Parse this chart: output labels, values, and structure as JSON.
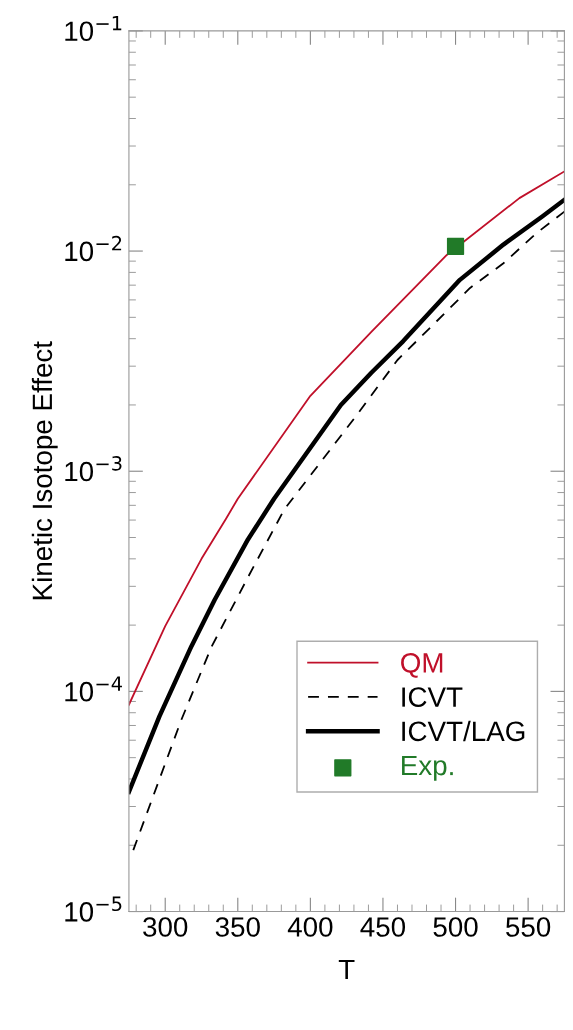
{
  "chart_data": {
    "type": "line",
    "xlabel": "T",
    "ylabel": "Kinetic Isotope Effect",
    "log": "y",
    "grid": false,
    "legend": "bottom right",
    "xlim": [
      275,
      575
    ],
    "xticks": [
      300,
      350,
      400,
      450,
      500,
      550
    ],
    "ylim": [
      1e-05,
      0.1
    ],
    "yticks": [
      {
        "value": 1e-05,
        "label": "10$^{−5}$"
      },
      {
        "value": 0.0001,
        "label": "10$^{−4}$"
      },
      {
        "value": 0.001,
        "label": "10$^{−3}$"
      },
      {
        "value": 0.01,
        "label": "10$^{−2}$"
      },
      {
        "value": 0.1,
        "label": "10$^{−1}$"
      }
    ],
    "series": [
      {
        "name": "QM",
        "color": "#c0102a",
        "line_style": "solid",
        "marker": "none",
        "x": [
          275,
          300,
          325,
          342,
          350,
          400,
          442,
          494,
          544,
          575
        ],
        "values": [
          8.7e-05,
          0.000198,
          0.0004,
          0.00061,
          0.00075,
          0.0022,
          0.0043,
          0.0096,
          0.0174,
          0.023
        ]
      },
      {
        "name": "ICVT",
        "color": "#000000",
        "line_style": "dashed",
        "marker": "none",
        "x": [
          278,
          311,
          332,
          357,
          382,
          432,
          460,
          487,
          510,
          533,
          556,
          575
        ],
        "values": [
          1.9e-05,
          7.4e-05,
          0.00016,
          0.00033,
          0.00067,
          0.0018,
          0.0032,
          0.0048,
          0.0068,
          0.0088,
          0.0121,
          0.0151
        ]
      },
      {
        "name": "ICVT/LAG",
        "color": "#000000",
        "line_style": "solid",
        "marker": "none",
        "x": [
          275,
          296,
          318,
          334,
          357,
          375,
          421,
          442,
          464,
          503,
          533,
          560,
          575
        ],
        "values": [
          3.5e-05,
          7.7e-05,
          0.00016,
          0.00026,
          0.00049,
          0.00075,
          0.002,
          0.0028,
          0.0039,
          0.0074,
          0.0107,
          0.0144,
          0.0171
        ]
      },
      {
        "name": "Exp.",
        "type": "scatter",
        "color": "#217a28",
        "marker": "square",
        "x": [
          500
        ],
        "values": [
          0.0105
        ]
      }
    ]
  }
}
